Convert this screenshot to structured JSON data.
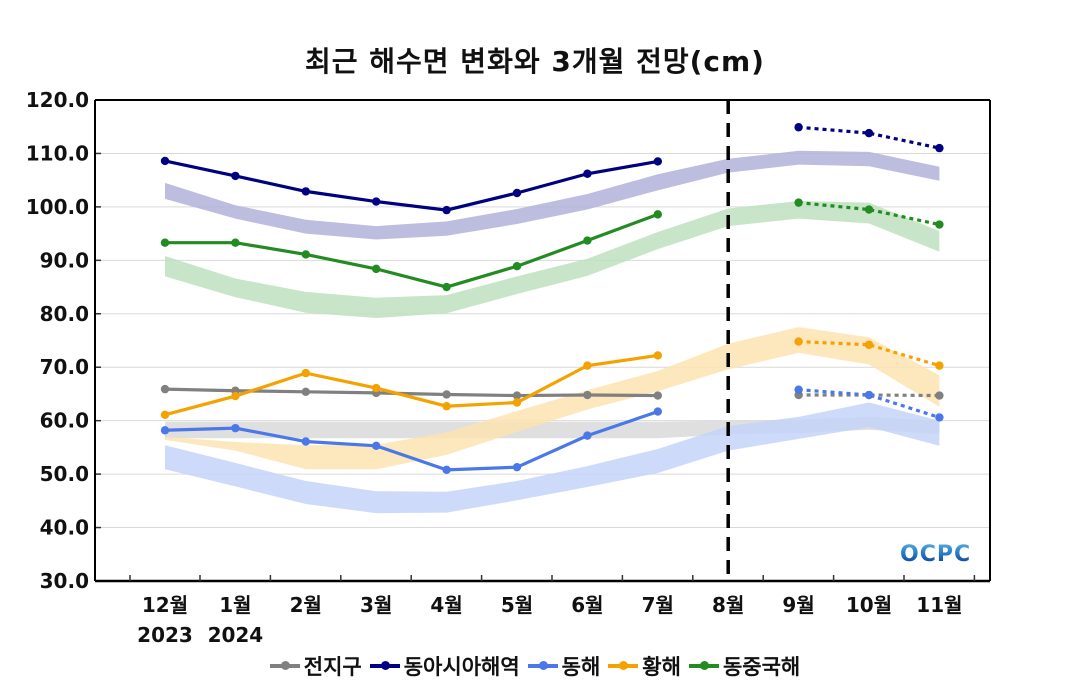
{
  "chart_data": {
    "type": "line",
    "title": "최근 해수면 변화와 3개월 전망(cm)",
    "xlabel": "",
    "ylabel": "",
    "ylim": [
      30,
      120
    ],
    "yticks": [
      "30.0",
      "40.0",
      "50.0",
      "60.0",
      "70.0",
      "80.0",
      "90.0",
      "100.0",
      "110.0",
      "120.0"
    ],
    "categories": [
      "12월",
      "1월",
      "2월",
      "3월",
      "4월",
      "5월",
      "6월",
      "7월",
      "8월",
      "9월",
      "10월",
      "11월"
    ],
    "year_labels": [
      {
        "index": 0,
        "label": "2023"
      },
      {
        "index": 1,
        "label": "2024"
      }
    ],
    "forecast_divider_index": 8,
    "grid": true,
    "legend_position": "bottom",
    "series": [
      {
        "name": "전지구",
        "color": "#808080",
        "band_color": "#d9d9d9",
        "observed": [
          65.9,
          65.6,
          65.4,
          65.2,
          64.9,
          64.7,
          64.8,
          64.7
        ],
        "forecast": [
          64.8,
          64.8,
          64.7
        ],
        "band_low": [
          56.7,
          56.7,
          56.7,
          56.7,
          56.7,
          56.7,
          56.7,
          56.7,
          57.4,
          57.7,
          58.3,
          57.5
        ],
        "band_high": [
          59.8,
          59.8,
          59.8,
          59.8,
          59.8,
          59.8,
          59.8,
          59.8,
          60.0,
          60.2,
          60.7,
          60.0
        ]
      },
      {
        "name": "동아시아해역",
        "color": "#000080",
        "band_color": "#b1b1d9",
        "observed": [
          108.6,
          105.8,
          102.9,
          101.0,
          99.4,
          102.6,
          106.2,
          108.5
        ],
        "forecast": [
          114.9,
          113.8,
          111.0
        ],
        "band_low": [
          101.5,
          97.8,
          95.0,
          93.9,
          94.6,
          96.8,
          99.5,
          103.1,
          106.4,
          107.9,
          107.6,
          104.9
        ],
        "band_high": [
          104.5,
          100.3,
          97.6,
          96.4,
          97.3,
          99.6,
          102.4,
          106.1,
          109.0,
          110.5,
          110.3,
          107.5
        ]
      },
      {
        "name": "동해",
        "color": "#4a78e8",
        "band_color": "#c6d4f8",
        "observed": [
          58.2,
          58.6,
          56.1,
          55.3,
          50.8,
          51.3,
          57.2,
          61.7
        ],
        "forecast": [
          65.8,
          64.8,
          60.6
        ],
        "band_low": [
          50.9,
          47.7,
          44.4,
          42.7,
          42.8,
          45.1,
          47.6,
          50.2,
          54.4,
          56.6,
          58.8,
          55.3
        ],
        "band_high": [
          55.4,
          52.1,
          48.7,
          46.8,
          46.7,
          48.7,
          51.5,
          54.7,
          59.0,
          60.7,
          63.4,
          60.0
        ]
      },
      {
        "name": "황해",
        "color": "#f5a200",
        "band_color": "#fde3b1",
        "observed": [
          61.1,
          64.6,
          68.9,
          66.1,
          62.7,
          63.4,
          70.3,
          72.2
        ],
        "forecast": [
          74.8,
          74.2,
          70.3
        ],
        "band_low": [
          56.4,
          54.4,
          50.9,
          50.9,
          53.6,
          57.9,
          62.1,
          65.5,
          69.6,
          72.7,
          70.5,
          62.6
        ],
        "band_high": [
          57.0,
          56.0,
          55.4,
          55.5,
          57.8,
          61.8,
          65.7,
          69.3,
          74.4,
          77.5,
          75.6,
          68.5
        ]
      },
      {
        "name": "동중국해",
        "color": "#228b22",
        "band_color": "#bfe0bf",
        "observed": [
          93.3,
          93.3,
          91.1,
          88.4,
          85.0,
          88.9,
          93.7,
          98.6
        ],
        "forecast": [
          100.8,
          99.5,
          96.7
        ],
        "band_low": [
          87.0,
          83.1,
          80.2,
          79.2,
          80.1,
          83.7,
          87.1,
          92.1,
          96.4,
          97.8,
          96.9,
          91.6
        ],
        "band_high": [
          90.8,
          86.6,
          84.1,
          83.0,
          83.5,
          87.0,
          90.3,
          95.3,
          99.7,
          101.1,
          100.8,
          95.5
        ]
      }
    ]
  },
  "logo": {
    "text": "OCPC"
  }
}
